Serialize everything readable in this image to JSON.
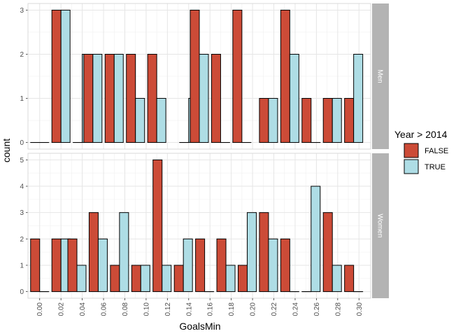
{
  "chart_data": {
    "type": "bar",
    "xlabel": "GoalsMin",
    "ylabel": "count",
    "legend_title": "Year > 2014",
    "legend_position": "right",
    "categories": [
      "0.00",
      "0.02",
      "0.04",
      "0.06",
      "0.08",
      "0.10",
      "0.12",
      "0.14",
      "0.16",
      "0.18",
      "0.20",
      "0.22",
      "0.24",
      "0.26",
      "0.28",
      "0.30"
    ],
    "series_names": [
      "FALSE",
      "TRUE"
    ],
    "colors": {
      "FALSE": "#cc4b37",
      "TRUE": "#aedde5"
    },
    "panels": [
      {
        "label": "Men",
        "ylim": [
          0,
          3
        ],
        "yticks": [
          0,
          1,
          2,
          3
        ],
        "bars": [
          {
            "x": 0.0,
            "series": "FALSE",
            "value": 0
          },
          {
            "x": 0.0,
            "series": "TRUE",
            "value": 0
          },
          {
            "x": 0.02,
            "series": "FALSE",
            "value": 3
          },
          {
            "x": 0.02,
            "series": "TRUE",
            "value": 3
          },
          {
            "x": 0.04,
            "series": "FALSE",
            "value": 0
          },
          {
            "x": 0.04,
            "series": "TRUE",
            "value": 2
          },
          {
            "x": 0.05,
            "series": "FALSE",
            "value": 2
          },
          {
            "x": 0.05,
            "series": "TRUE",
            "value": 2
          },
          {
            "x": 0.07,
            "series": "FALSE",
            "value": 2
          },
          {
            "x": 0.07,
            "series": "TRUE",
            "value": 2
          },
          {
            "x": 0.09,
            "series": "FALSE",
            "value": 2
          },
          {
            "x": 0.09,
            "series": "TRUE",
            "value": 1
          },
          {
            "x": 0.11,
            "series": "FALSE",
            "value": 2
          },
          {
            "x": 0.11,
            "series": "TRUE",
            "value": 1
          },
          {
            "x": 0.14,
            "series": "FALSE",
            "value": 0
          },
          {
            "x": 0.14,
            "series": "TRUE",
            "value": 1
          },
          {
            "x": 0.15,
            "series": "FALSE",
            "value": 3
          },
          {
            "x": 0.15,
            "series": "TRUE",
            "value": 2
          },
          {
            "x": 0.17,
            "series": "FALSE",
            "value": 2
          },
          {
            "x": 0.17,
            "series": "TRUE",
            "value": 0
          },
          {
            "x": 0.19,
            "series": "FALSE",
            "value": 3
          },
          {
            "x": 0.19,
            "series": "TRUE",
            "value": 0
          },
          {
            "x": 0.215,
            "series": "FALSE",
            "value": 1
          },
          {
            "x": 0.215,
            "series": "TRUE",
            "value": 1
          },
          {
            "x": 0.235,
            "series": "FALSE",
            "value": 3
          },
          {
            "x": 0.235,
            "series": "TRUE",
            "value": 2
          },
          {
            "x": 0.255,
            "series": "FALSE",
            "value": 1
          },
          {
            "x": 0.255,
            "series": "TRUE",
            "value": 0
          },
          {
            "x": 0.275,
            "series": "FALSE",
            "value": 1
          },
          {
            "x": 0.275,
            "series": "TRUE",
            "value": 1
          },
          {
            "x": 0.295,
            "series": "FALSE",
            "value": 1
          },
          {
            "x": 0.295,
            "series": "TRUE",
            "value": 2
          }
        ]
      },
      {
        "label": "Women",
        "ylim": [
          0,
          5
        ],
        "yticks": [
          0,
          1,
          2,
          3,
          4,
          5
        ],
        "bars": [
          {
            "x": 0.0,
            "series": "FALSE",
            "value": 2
          },
          {
            "x": 0.0,
            "series": "TRUE",
            "value": 0
          },
          {
            "x": 0.02,
            "series": "FALSE",
            "value": 2
          },
          {
            "x": 0.02,
            "series": "TRUE",
            "value": 2
          },
          {
            "x": 0.035,
            "series": "FALSE",
            "value": 2
          },
          {
            "x": 0.035,
            "series": "TRUE",
            "value": 1
          },
          {
            "x": 0.055,
            "series": "FALSE",
            "value": 3
          },
          {
            "x": 0.055,
            "series": "TRUE",
            "value": 2
          },
          {
            "x": 0.075,
            "series": "FALSE",
            "value": 1
          },
          {
            "x": 0.075,
            "series": "TRUE",
            "value": 3
          },
          {
            "x": 0.095,
            "series": "FALSE",
            "value": 1
          },
          {
            "x": 0.095,
            "series": "TRUE",
            "value": 1
          },
          {
            "x": 0.115,
            "series": "FALSE",
            "value": 5
          },
          {
            "x": 0.115,
            "series": "TRUE",
            "value": 1
          },
          {
            "x": 0.135,
            "series": "FALSE",
            "value": 1
          },
          {
            "x": 0.135,
            "series": "TRUE",
            "value": 2
          },
          {
            "x": 0.155,
            "series": "FALSE",
            "value": 2
          },
          {
            "x": 0.155,
            "series": "TRUE",
            "value": 0
          },
          {
            "x": 0.175,
            "series": "FALSE",
            "value": 2
          },
          {
            "x": 0.175,
            "series": "TRUE",
            "value": 1
          },
          {
            "x": 0.195,
            "series": "FALSE",
            "value": 1
          },
          {
            "x": 0.195,
            "series": "TRUE",
            "value": 3
          },
          {
            "x": 0.215,
            "series": "FALSE",
            "value": 3
          },
          {
            "x": 0.215,
            "series": "TRUE",
            "value": 2
          },
          {
            "x": 0.235,
            "series": "FALSE",
            "value": 2
          },
          {
            "x": 0.235,
            "series": "TRUE",
            "value": 0
          },
          {
            "x": 0.255,
            "series": "FALSE",
            "value": 0
          },
          {
            "x": 0.255,
            "series": "TRUE",
            "value": 4
          },
          {
            "x": 0.275,
            "series": "FALSE",
            "value": 3
          },
          {
            "x": 0.275,
            "series": "TRUE",
            "value": 1
          },
          {
            "x": 0.295,
            "series": "FALSE",
            "value": 1
          },
          {
            "x": 0.295,
            "series": "TRUE",
            "value": 0
          }
        ]
      }
    ]
  }
}
